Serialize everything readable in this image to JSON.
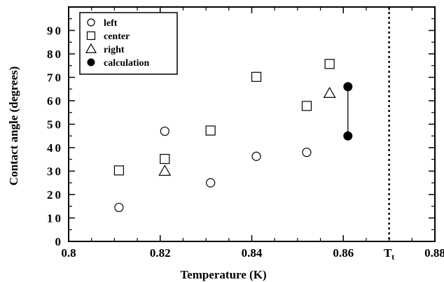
{
  "chart_data": {
    "type": "scatter",
    "xlabel": "Temperature (K)",
    "ylabel": "Contact angle (degrees)",
    "xlim": [
      0.8,
      0.88
    ],
    "ylim": [
      0,
      100
    ],
    "x_ticks": [
      {
        "value": 0.8,
        "label": "0.8"
      },
      {
        "value": 0.82,
        "label": "0.82"
      },
      {
        "value": 0.84,
        "label": "0.84"
      },
      {
        "value": 0.86,
        "label": "0.86"
      },
      {
        "value": 0.88,
        "label": "0.88"
      }
    ],
    "y_ticks": [
      {
        "value": 0,
        "label": "0"
      },
      {
        "value": 10,
        "label": "10"
      },
      {
        "value": 20,
        "label": "20"
      },
      {
        "value": 30,
        "label": "30"
      },
      {
        "value": 40,
        "label": "40"
      },
      {
        "value": 50,
        "label": "50"
      },
      {
        "value": 60,
        "label": "60"
      },
      {
        "value": 70,
        "label": "70"
      },
      {
        "value": 80,
        "label": "80"
      },
      {
        "value": 90,
        "label": "90"
      }
    ],
    "grid": false,
    "legend_position": "top-left",
    "reference_line": {
      "x": 0.87,
      "label": "T",
      "label_subscript": "t",
      "style": "dotted"
    },
    "series": [
      {
        "name": "left",
        "marker": "circle-open",
        "points": [
          {
            "x": 0.811,
            "y": 14.5
          },
          {
            "x": 0.821,
            "y": 47
          },
          {
            "x": 0.831,
            "y": 25
          },
          {
            "x": 0.841,
            "y": 36.3
          },
          {
            "x": 0.852,
            "y": 38
          }
        ]
      },
      {
        "name": "center",
        "marker": "square-open",
        "points": [
          {
            "x": 0.811,
            "y": 30.3
          },
          {
            "x": 0.821,
            "y": 35.2
          },
          {
            "x": 0.831,
            "y": 47.3
          },
          {
            "x": 0.841,
            "y": 70.2
          },
          {
            "x": 0.852,
            "y": 57.8
          },
          {
            "x": 0.857,
            "y": 75.7
          }
        ]
      },
      {
        "name": "right",
        "marker": "triangle-open",
        "points": [
          {
            "x": 0.821,
            "y": 30
          },
          {
            "x": 0.857,
            "y": 63.2
          }
        ]
      },
      {
        "name": "calculation",
        "marker": "circle-filled",
        "connected": true,
        "points": [
          {
            "x": 0.861,
            "y": 66
          },
          {
            "x": 0.861,
            "y": 45
          }
        ]
      }
    ]
  }
}
